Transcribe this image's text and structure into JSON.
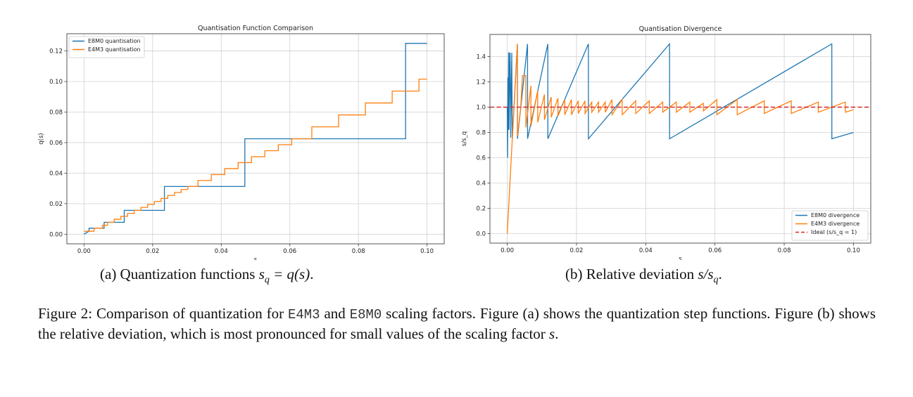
{
  "chart_data": [
    {
      "id": "a",
      "type": "line",
      "title": "Quantisation Function Comparison",
      "xlabel": "s",
      "ylabel": "q(s)",
      "xlim": [
        -0.005,
        0.105
      ],
      "ylim": [
        -0.0063,
        0.1313
      ],
      "xticks": [
        "0.00",
        "0.02",
        "0.04",
        "0.06",
        "0.08",
        "0.10"
      ],
      "xtick_values": [
        0,
        0.02,
        0.04,
        0.06,
        0.08,
        0.1
      ],
      "yticks": [
        "0.00",
        "0.02",
        "0.04",
        "0.06",
        "0.08",
        "0.10",
        "0.12"
      ],
      "ytick_values": [
        0,
        0.02,
        0.04,
        0.06,
        0.08,
        0.1,
        0.12
      ],
      "grid": true,
      "legend_position": "top-left",
      "step": true,
      "series": [
        {
          "name": "E8M0 quantisation",
          "color": "#1f77b4",
          "x": [
            0.0,
            0.00146,
            0.00146,
            0.00586,
            0.00586,
            0.01172,
            0.01172,
            0.02344,
            0.02344,
            0.04688,
            0.04688,
            0.09375,
            0.09375,
            0.1
          ],
          "y": [
            0.0,
            0.00195,
            0.00391,
            0.00391,
            0.00781,
            0.00781,
            0.01563,
            0.01563,
            0.03125,
            0.03125,
            0.0625,
            0.0625,
            0.125,
            0.125
          ]
        },
        {
          "name": "E4M3 quantisation",
          "color": "#ff7f0e",
          "x": [
            0.0,
            0.00293,
            0.00293,
            0.00537,
            0.00537,
            0.00684,
            0.00684,
            0.00879,
            0.00879,
            0.01074,
            0.01074,
            0.0127,
            0.0127,
            0.01465,
            0.01465,
            0.0166,
            0.0166,
            0.01855,
            0.01855,
            0.02051,
            0.02051,
            0.02246,
            0.02246,
            0.02441,
            0.02441,
            0.02637,
            0.02637,
            0.02832,
            0.02832,
            0.03027,
            0.03027,
            0.0332,
            0.0332,
            0.03711,
            0.03711,
            0.04102,
            0.04102,
            0.04492,
            0.04492,
            0.04883,
            0.04883,
            0.05273,
            0.05273,
            0.05664,
            0.05664,
            0.06055,
            0.06055,
            0.06641,
            0.06641,
            0.07422,
            0.07422,
            0.08203,
            0.08203,
            0.08984,
            0.08984,
            0.09766,
            0.09766,
            0.1
          ],
          "y": [
            0.00195,
            0.00195,
            0.00391,
            0.00391,
            0.00586,
            0.00586,
            0.00781,
            0.00781,
            0.00977,
            0.00977,
            0.01172,
            0.01172,
            0.01367,
            0.01367,
            0.01563,
            0.01563,
            0.01758,
            0.01758,
            0.01953,
            0.01953,
            0.02148,
            0.02148,
            0.02344,
            0.02344,
            0.02539,
            0.02539,
            0.02734,
            0.02734,
            0.0293,
            0.0293,
            0.03125,
            0.03125,
            0.03516,
            0.03516,
            0.03906,
            0.03906,
            0.04297,
            0.04297,
            0.04688,
            0.04688,
            0.05078,
            0.05078,
            0.05469,
            0.05469,
            0.05859,
            0.05859,
            0.0625,
            0.0625,
            0.07031,
            0.07031,
            0.07813,
            0.07813,
            0.08594,
            0.08594,
            0.09375,
            0.09375,
            0.10156,
            0.10156
          ]
        }
      ]
    },
    {
      "id": "b",
      "type": "line",
      "title": "Quantisation Divergence",
      "xlabel": "s",
      "ylabel": "s/s_q",
      "xlim": [
        -0.005,
        0.105
      ],
      "ylim": [
        -0.075,
        1.575
      ],
      "xticks": [
        "0.00",
        "0.02",
        "0.04",
        "0.06",
        "0.08",
        "0.10"
      ],
      "xtick_values": [
        0,
        0.02,
        0.04,
        0.06,
        0.08,
        0.1
      ],
      "yticks": [
        "0.0",
        "0.2",
        "0.4",
        "0.6",
        "0.8",
        "1.0",
        "1.2",
        "1.4"
      ],
      "ytick_values": [
        0,
        0.2,
        0.4,
        0.6,
        0.8,
        1.0,
        1.2,
        1.4
      ],
      "grid": true,
      "legend_position": "bottom-right",
      "series": [
        {
          "name": "E8M0 divergence",
          "color": "#1f77b4",
          "x": [
            0.0,
            0.0001,
            0.0002,
            0.00024,
            0.00025,
            0.0004,
            0.00049,
            0.0005,
            0.0008,
            0.00098,
            0.00099,
            0.0013,
            0.00146,
            0.00147,
            0.00293,
            0.00294,
            0.00586,
            0.00587,
            0.01172,
            0.01173,
            0.02344,
            0.02345,
            0.04688,
            0.04689,
            0.09375,
            0.09376,
            0.1
          ],
          "y": [
            1.0,
            0.6,
            1.23,
            1.23,
            0.82,
            1.43,
            1.43,
            0.82,
            1.43,
            1.0,
            0.76,
            1.43,
            0.75,
            0.75,
            1.5,
            0.75,
            1.5,
            0.75,
            1.5,
            0.75,
            1.5,
            0.75,
            1.5,
            0.75,
            1.5,
            0.75,
            0.8
          ]
        },
        {
          "name": "E4M3 divergence",
          "color": "#ff7f0e",
          "x": [
            0.0,
            0.00146,
            0.00293,
            0.00294,
            0.0039,
            0.0044,
            0.00537,
            0.00538,
            0.00684,
            0.00685,
            0.00879,
            0.0088,
            0.01074,
            0.01075,
            0.0127,
            0.01271,
            0.01465,
            0.01466,
            0.0166,
            0.01661,
            0.01855,
            0.01856,
            0.02051,
            0.02052,
            0.02246,
            0.02247,
            0.02441,
            0.02442,
            0.02637,
            0.02638,
            0.02832,
            0.02833,
            0.03027,
            0.03028,
            0.0332,
            0.03321,
            0.03711,
            0.03712,
            0.04102,
            0.04103,
            0.04492,
            0.04493,
            0.04883,
            0.04884,
            0.05273,
            0.05274,
            0.05664,
            0.05665,
            0.06055,
            0.06056,
            0.06641,
            0.06642,
            0.07422,
            0.07423,
            0.08203,
            0.08204,
            0.08984,
            0.08985,
            0.09766,
            0.09767,
            0.1
          ],
          "y": [
            0.0,
            0.75,
            1.5,
            0.77,
            1.0,
            1.25,
            1.25,
            0.84,
            1.17,
            0.85,
            1.13,
            0.88,
            1.1,
            0.9,
            1.08,
            0.92,
            1.07,
            0.93,
            1.06,
            0.94,
            1.06,
            0.94,
            1.05,
            0.95,
            1.05,
            0.95,
            1.04,
            0.96,
            1.04,
            0.96,
            1.04,
            0.96,
            1.06,
            0.94,
            1.06,
            0.94,
            1.05,
            0.95,
            1.05,
            0.95,
            1.04,
            0.96,
            1.04,
            0.96,
            1.04,
            0.96,
            1.03,
            0.97,
            1.06,
            0.94,
            1.06,
            0.94,
            1.05,
            0.95,
            1.05,
            0.95,
            1.04,
            0.96,
            1.04,
            0.96,
            0.98
          ]
        },
        {
          "name": "Ideal (s/s_q = 1)",
          "color": "#d62728",
          "dashed": true,
          "y_constant": 1.0
        }
      ]
    }
  ],
  "subcaptions": {
    "a": {
      "prefix": "(a) Quantization functions ",
      "math_lhs": "s",
      "math_sub": "q",
      "math_rhs": " = q(s)",
      "suffix": "."
    },
    "b": {
      "prefix": "(b) Relative deviation ",
      "math_lhs": "s/s",
      "math_sub": "q",
      "suffix": "."
    }
  },
  "caption": {
    "label": "Figure 2:",
    "part1": " Comparison of quantization for ",
    "code1": "E4M3",
    "part2": " and ",
    "code2": "E8M0",
    "part3": " scaling factors.  Figure (a) shows the quantization step functions. Figure (b) shows the relative deviation, which is most pronounced for small values of the scaling factor ",
    "var": "s",
    "part4": "."
  }
}
